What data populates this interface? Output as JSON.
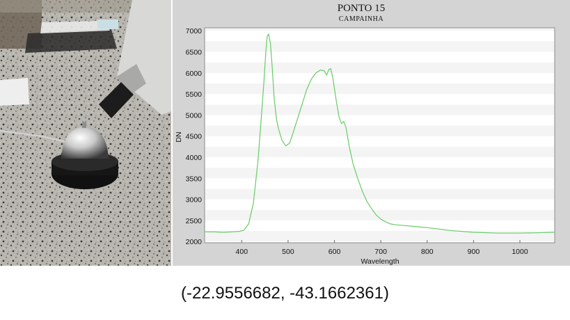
{
  "photo": {
    "description_icon": "photo-icon"
  },
  "chart_data": {
    "type": "line",
    "title": "PONTO 15",
    "subtitle": "CAMPAINHA",
    "xlabel": "Wavelength",
    "ylabel": "DN",
    "xlim": [
      320,
      1075
    ],
    "ylim": [
      1970,
      7070
    ],
    "xticks": [
      400,
      500,
      600,
      700,
      800,
      900,
      1000
    ],
    "yticks": [
      2000,
      2500,
      3000,
      3500,
      4000,
      4500,
      5000,
      5500,
      6000,
      6500,
      7000
    ],
    "grid": true,
    "line_color": "#66cc66",
    "series": [
      {
        "name": "",
        "x": [
          320,
          340,
          360,
          380,
          395,
          405,
          415,
          425,
          435,
          442,
          448,
          452,
          455,
          458,
          462,
          466,
          470,
          475,
          480,
          487,
          495,
          503,
          510,
          520,
          530,
          540,
          550,
          560,
          570,
          578,
          583,
          588,
          592,
          597,
          603,
          610,
          615,
          620,
          625,
          632,
          640,
          650,
          660,
          670,
          680,
          690,
          700,
          710,
          720,
          730,
          740,
          750,
          780,
          800,
          850,
          900,
          950,
          1000,
          1050,
          1075
        ],
        "y": [
          2230,
          2230,
          2220,
          2230,
          2240,
          2270,
          2420,
          2900,
          3900,
          4900,
          5800,
          6500,
          6870,
          6920,
          6700,
          6100,
          5400,
          4900,
          4650,
          4400,
          4270,
          4330,
          4550,
          4900,
          5250,
          5600,
          5850,
          6000,
          6070,
          6050,
          5950,
          6080,
          6100,
          5850,
          5400,
          4950,
          4800,
          4850,
          4700,
          4250,
          3850,
          3500,
          3200,
          2950,
          2780,
          2630,
          2530,
          2470,
          2420,
          2400,
          2390,
          2380,
          2350,
          2330,
          2260,
          2220,
          2200,
          2200,
          2210,
          2220
        ]
      }
    ]
  },
  "coordinates": "(-22.9556682, -43.1662361)"
}
